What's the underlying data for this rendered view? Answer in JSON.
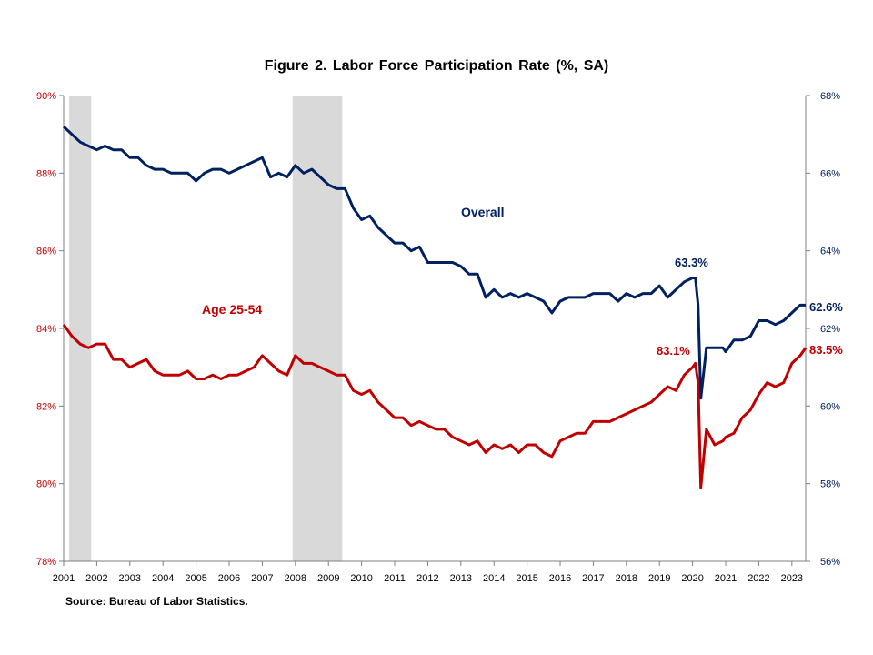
{
  "title": "Figure 2. Labor Force Participation  Rate (%, SA)",
  "source": "Source: Bureau of Labor Statistics.",
  "colors": {
    "overall": "#002060",
    "prime": "#c00000",
    "recession": "#d9d9d9"
  },
  "chart_data": {
    "type": "line",
    "title": "Figure 2. Labor Force Participation  Rate (%, SA)",
    "x_start": "2001-01",
    "x_end": "2023-06",
    "x_ticks": [
      "2001",
      "2002",
      "2003",
      "2004",
      "2005",
      "2006",
      "2007",
      "2008",
      "2009",
      "2010",
      "2011",
      "2012",
      "2013",
      "2014",
      "2015",
      "2016",
      "2017",
      "2018",
      "2019",
      "2020",
      "2021",
      "2022",
      "2023"
    ],
    "y_left": {
      "label": "",
      "range": [
        78,
        90
      ],
      "ticks": [
        "78%",
        "80%",
        "82%",
        "84%",
        "86%",
        "88%",
        "90%"
      ]
    },
    "y_right": {
      "label": "",
      "range": [
        56,
        68
      ],
      "ticks": [
        "56%",
        "58%",
        "60%",
        "62%",
        "64%",
        "66%",
        "68%"
      ]
    },
    "recessions": [
      {
        "start": "2001-03",
        "end": "2001-11"
      },
      {
        "start": "2007-12",
        "end": "2009-06"
      }
    ],
    "series": [
      {
        "name": "Overall",
        "axis": "right",
        "points": [
          [
            "2001-01",
            67.2
          ],
          [
            "2001-04",
            67.0
          ],
          [
            "2001-07",
            66.8
          ],
          [
            "2001-10",
            66.7
          ],
          [
            "2002-01",
            66.6
          ],
          [
            "2002-04",
            66.7
          ],
          [
            "2002-07",
            66.6
          ],
          [
            "2002-10",
            66.6
          ],
          [
            "2003-01",
            66.4
          ],
          [
            "2003-04",
            66.4
          ],
          [
            "2003-07",
            66.2
          ],
          [
            "2003-10",
            66.1
          ],
          [
            "2004-01",
            66.1
          ],
          [
            "2004-04",
            66.0
          ],
          [
            "2004-07",
            66.0
          ],
          [
            "2004-10",
            66.0
          ],
          [
            "2005-01",
            65.8
          ],
          [
            "2005-04",
            66.0
          ],
          [
            "2005-07",
            66.1
          ],
          [
            "2005-10",
            66.1
          ],
          [
            "2006-01",
            66.0
          ],
          [
            "2006-04",
            66.1
          ],
          [
            "2006-07",
            66.2
          ],
          [
            "2006-10",
            66.3
          ],
          [
            "2007-01",
            66.4
          ],
          [
            "2007-04",
            65.9
          ],
          [
            "2007-07",
            66.0
          ],
          [
            "2007-10",
            65.9
          ],
          [
            "2008-01",
            66.2
          ],
          [
            "2008-04",
            66.0
          ],
          [
            "2008-07",
            66.1
          ],
          [
            "2008-10",
            65.9
          ],
          [
            "2009-01",
            65.7
          ],
          [
            "2009-04",
            65.6
          ],
          [
            "2009-07",
            65.6
          ],
          [
            "2009-10",
            65.1
          ],
          [
            "2010-01",
            64.8
          ],
          [
            "2010-04",
            64.9
          ],
          [
            "2010-07",
            64.6
          ],
          [
            "2010-10",
            64.4
          ],
          [
            "2011-01",
            64.2
          ],
          [
            "2011-04",
            64.2
          ],
          [
            "2011-07",
            64.0
          ],
          [
            "2011-10",
            64.1
          ],
          [
            "2012-01",
            63.7
          ],
          [
            "2012-04",
            63.7
          ],
          [
            "2012-07",
            63.7
          ],
          [
            "2012-10",
            63.7
          ],
          [
            "2013-01",
            63.6
          ],
          [
            "2013-04",
            63.4
          ],
          [
            "2013-07",
            63.4
          ],
          [
            "2013-10",
            62.8
          ],
          [
            "2014-01",
            63.0
          ],
          [
            "2014-04",
            62.8
          ],
          [
            "2014-07",
            62.9
          ],
          [
            "2014-10",
            62.8
          ],
          [
            "2015-01",
            62.9
          ],
          [
            "2015-04",
            62.8
          ],
          [
            "2015-07",
            62.7
          ],
          [
            "2015-10",
            62.4
          ],
          [
            "2016-01",
            62.7
          ],
          [
            "2016-04",
            62.8
          ],
          [
            "2016-07",
            62.8
          ],
          [
            "2016-10",
            62.8
          ],
          [
            "2017-01",
            62.9
          ],
          [
            "2017-04",
            62.9
          ],
          [
            "2017-07",
            62.9
          ],
          [
            "2017-10",
            62.7
          ],
          [
            "2018-01",
            62.9
          ],
          [
            "2018-04",
            62.8
          ],
          [
            "2018-07",
            62.9
          ],
          [
            "2018-10",
            62.9
          ],
          [
            "2019-01",
            63.1
          ],
          [
            "2019-04",
            62.8
          ],
          [
            "2019-07",
            63.0
          ],
          [
            "2019-10",
            63.2
          ],
          [
            "2020-01",
            63.3
          ],
          [
            "2020-02",
            63.3
          ],
          [
            "2020-03",
            62.6
          ],
          [
            "2020-04",
            60.2
          ],
          [
            "2020-06",
            61.5
          ],
          [
            "2020-09",
            61.5
          ],
          [
            "2020-12",
            61.5
          ],
          [
            "2021-01",
            61.4
          ],
          [
            "2021-04",
            61.7
          ],
          [
            "2021-07",
            61.7
          ],
          [
            "2021-10",
            61.8
          ],
          [
            "2022-01",
            62.2
          ],
          [
            "2022-04",
            62.2
          ],
          [
            "2022-07",
            62.1
          ],
          [
            "2022-10",
            62.2
          ],
          [
            "2023-01",
            62.4
          ],
          [
            "2023-04",
            62.6
          ],
          [
            "2023-06",
            62.6
          ]
        ]
      },
      {
        "name": "Age 25-54",
        "axis": "left",
        "points": [
          [
            "2001-01",
            84.1
          ],
          [
            "2001-04",
            83.8
          ],
          [
            "2001-07",
            83.6
          ],
          [
            "2001-10",
            83.5
          ],
          [
            "2002-01",
            83.6
          ],
          [
            "2002-04",
            83.6
          ],
          [
            "2002-07",
            83.2
          ],
          [
            "2002-10",
            83.2
          ],
          [
            "2003-01",
            83.0
          ],
          [
            "2003-04",
            83.1
          ],
          [
            "2003-07",
            83.2
          ],
          [
            "2003-10",
            82.9
          ],
          [
            "2004-01",
            82.8
          ],
          [
            "2004-04",
            82.8
          ],
          [
            "2004-07",
            82.8
          ],
          [
            "2004-10",
            82.9
          ],
          [
            "2005-01",
            82.7
          ],
          [
            "2005-04",
            82.7
          ],
          [
            "2005-07",
            82.8
          ],
          [
            "2005-10",
            82.7
          ],
          [
            "2006-01",
            82.8
          ],
          [
            "2006-04",
            82.8
          ],
          [
            "2006-07",
            82.9
          ],
          [
            "2006-10",
            83.0
          ],
          [
            "2007-01",
            83.3
          ],
          [
            "2007-04",
            83.1
          ],
          [
            "2007-07",
            82.9
          ],
          [
            "2007-10",
            82.8
          ],
          [
            "2008-01",
            83.3
          ],
          [
            "2008-04",
            83.1
          ],
          [
            "2008-07",
            83.1
          ],
          [
            "2008-10",
            83.0
          ],
          [
            "2009-01",
            82.9
          ],
          [
            "2009-04",
            82.8
          ],
          [
            "2009-07",
            82.8
          ],
          [
            "2009-10",
            82.4
          ],
          [
            "2010-01",
            82.3
          ],
          [
            "2010-04",
            82.4
          ],
          [
            "2010-07",
            82.1
          ],
          [
            "2010-10",
            81.9
          ],
          [
            "2011-01",
            81.7
          ],
          [
            "2011-04",
            81.7
          ],
          [
            "2011-07",
            81.5
          ],
          [
            "2011-10",
            81.6
          ],
          [
            "2012-01",
            81.5
          ],
          [
            "2012-04",
            81.4
          ],
          [
            "2012-07",
            81.4
          ],
          [
            "2012-10",
            81.2
          ],
          [
            "2013-01",
            81.1
          ],
          [
            "2013-04",
            81.0
          ],
          [
            "2013-07",
            81.1
          ],
          [
            "2013-10",
            80.8
          ],
          [
            "2014-01",
            81.0
          ],
          [
            "2014-04",
            80.9
          ],
          [
            "2014-07",
            81.0
          ],
          [
            "2014-10",
            80.8
          ],
          [
            "2015-01",
            81.0
          ],
          [
            "2015-04",
            81.0
          ],
          [
            "2015-07",
            80.8
          ],
          [
            "2015-10",
            80.7
          ],
          [
            "2016-01",
            81.1
          ],
          [
            "2016-04",
            81.2
          ],
          [
            "2016-07",
            81.3
          ],
          [
            "2016-10",
            81.3
          ],
          [
            "2017-01",
            81.6
          ],
          [
            "2017-04",
            81.6
          ],
          [
            "2017-07",
            81.6
          ],
          [
            "2017-10",
            81.7
          ],
          [
            "2018-01",
            81.8
          ],
          [
            "2018-04",
            81.9
          ],
          [
            "2018-07",
            82.0
          ],
          [
            "2018-10",
            82.1
          ],
          [
            "2019-01",
            82.3
          ],
          [
            "2019-04",
            82.5
          ],
          [
            "2019-07",
            82.4
          ],
          [
            "2019-10",
            82.8
          ],
          [
            "2020-01",
            83.0
          ],
          [
            "2020-02",
            83.1
          ],
          [
            "2020-03",
            82.6
          ],
          [
            "2020-04",
            79.9
          ],
          [
            "2020-06",
            81.4
          ],
          [
            "2020-09",
            81.0
          ],
          [
            "2020-12",
            81.1
          ],
          [
            "2021-01",
            81.2
          ],
          [
            "2021-04",
            81.3
          ],
          [
            "2021-07",
            81.7
          ],
          [
            "2021-10",
            81.9
          ],
          [
            "2022-01",
            82.3
          ],
          [
            "2022-04",
            82.6
          ],
          [
            "2022-07",
            82.5
          ],
          [
            "2022-10",
            82.6
          ],
          [
            "2023-01",
            83.1
          ],
          [
            "2023-04",
            83.3
          ],
          [
            "2023-06",
            83.5
          ]
        ]
      }
    ],
    "annotations": {
      "overall_label": "Overall",
      "prime_label": "Age 25-54",
      "overall_peak": "63.3%",
      "prime_peak": "83.1%",
      "overall_last": "62.6%",
      "prime_last": "83.5%"
    },
    "legend": "none",
    "grid": false
  }
}
